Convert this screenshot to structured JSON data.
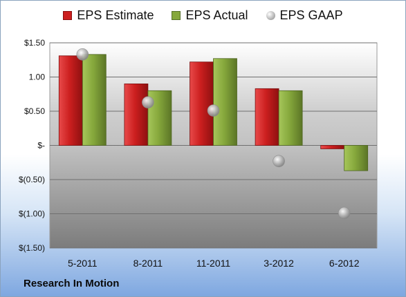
{
  "legend": {
    "estimate": "EPS Estimate",
    "actual": "EPS Actual",
    "gaap": "EPS GAAP"
  },
  "footer": {
    "company": "Research In Motion"
  },
  "colors": {
    "estimate": "#cc1f1f",
    "actual": "#86a83c",
    "gaap": "#a9a9a9"
  },
  "chart_data": {
    "type": "bar",
    "categories": [
      "5-2011",
      "8-2011",
      "11-2011",
      "3-2012",
      "6-2012"
    ],
    "series": [
      {
        "name": "EPS Estimate",
        "values": [
          1.31,
          0.9,
          1.22,
          0.83,
          -0.05
        ]
      },
      {
        "name": "EPS Actual",
        "values": [
          1.33,
          0.8,
          1.27,
          0.8,
          -0.37
        ]
      },
      {
        "name": "EPS GAAP",
        "type": "scatter",
        "values": [
          1.33,
          0.63,
          0.51,
          -0.23,
          -0.99
        ]
      }
    ],
    "yticks": [
      1.5,
      1.0,
      0.5,
      0,
      -0.5,
      -1.0,
      -1.5
    ],
    "ytick_labels": [
      "$1.50",
      "1.00",
      "$0.50",
      "$-",
      "$(0.50)",
      "$(1.00)",
      "$(1.50)"
    ],
    "ylim": [
      -1.5,
      1.5
    ],
    "grid": true,
    "legend_position": "top"
  }
}
